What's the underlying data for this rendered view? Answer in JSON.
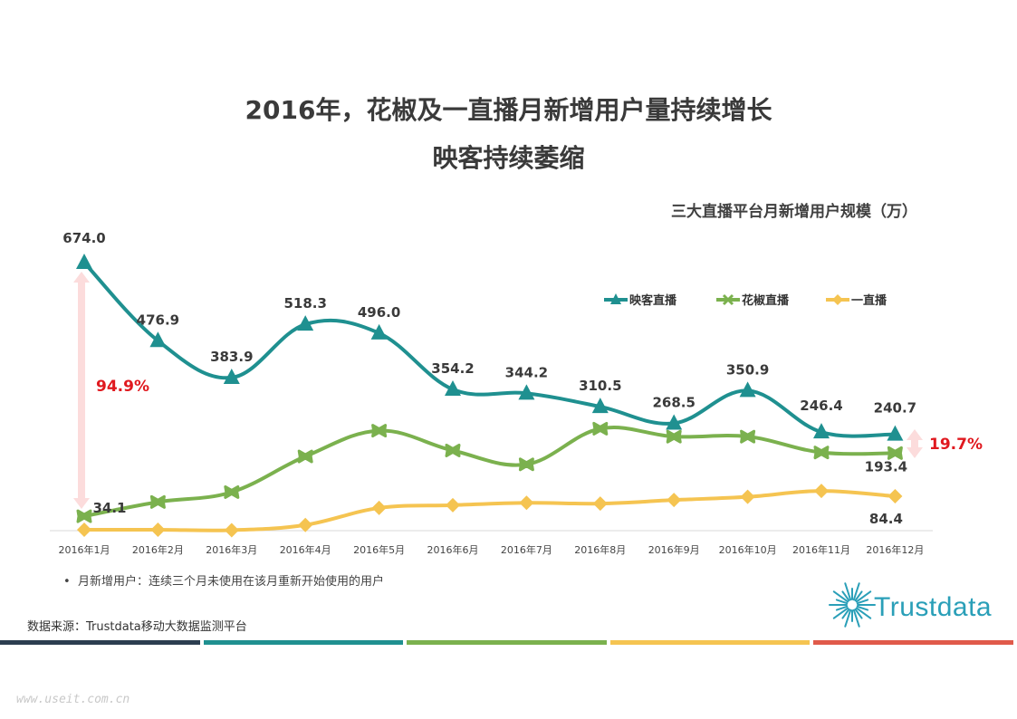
{
  "header": {
    "title_line1": "2016年，花椒及一直播月新增用户量持续增长",
    "title_line2": "映客持续萎缩"
  },
  "chart_data": {
    "type": "line",
    "subtitle": "三大直播平台月新增用户规模（万）",
    "categories": [
      "2016年1月",
      "2016年2月",
      "2016年3月",
      "2016年4月",
      "2016年5月",
      "2016年6月",
      "2016年7月",
      "2016年8月",
      "2016年9月",
      "2016年10月",
      "2016年11月",
      "2016年12月"
    ],
    "series": [
      {
        "name": "映客直播",
        "color": "#1f9090",
        "marker": "triangle",
        "values": [
          674.0,
          476.9,
          383.9,
          518.3,
          496.0,
          354.2,
          344.2,
          310.5,
          268.5,
          350.9,
          246.4,
          240.7
        ],
        "labels": [
          "674.0",
          "476.9",
          "383.9",
          "518.3",
          "496.0",
          "354.2",
          "344.2",
          "310.5",
          "268.5",
          "350.9",
          "246.4",
          "240.7"
        ]
      },
      {
        "name": "花椒直播",
        "color": "#7bb14e",
        "marker": "x",
        "values": [
          34.1,
          70,
          95,
          185,
          250,
          200,
          165,
          255,
          235,
          235,
          195,
          193.4
        ],
        "labels": [
          "34.1",
          "",
          "",
          "",
          "",
          "",
          "",
          "",
          "",
          "",
          "",
          "193.4"
        ]
      },
      {
        "name": "一直播",
        "color": "#f5c451",
        "marker": "diamond",
        "values": [
          0,
          0,
          -1,
          12,
          55,
          62,
          68,
          66,
          75,
          83,
          98,
          84.4
        ],
        "labels": [
          "",
          "",
          "",
          "",
          "",
          "",
          "",
          "",
          "",
          "",
          "",
          "84.4"
        ]
      }
    ],
    "ylim": [
      -20,
      720
    ],
    "grid": false,
    "legend": "top-right",
    "annotations": [
      {
        "text": "94.9%",
        "color": "#e0191f"
      },
      {
        "text": "19.7%",
        "color": "#e0191f"
      }
    ]
  },
  "footnote": "月新增用户：连续三个月未使用在该月重新开始使用的用户",
  "source": "数据来源：Trustdata移动大数据监测平台",
  "logo_text": "Trustdata",
  "watermark": "www.useit.com.cn",
  "colors": {
    "bars": [
      "#2c3e50",
      "#1f9090",
      "#7bb14e",
      "#f5c451",
      "#e05a4a"
    ]
  }
}
